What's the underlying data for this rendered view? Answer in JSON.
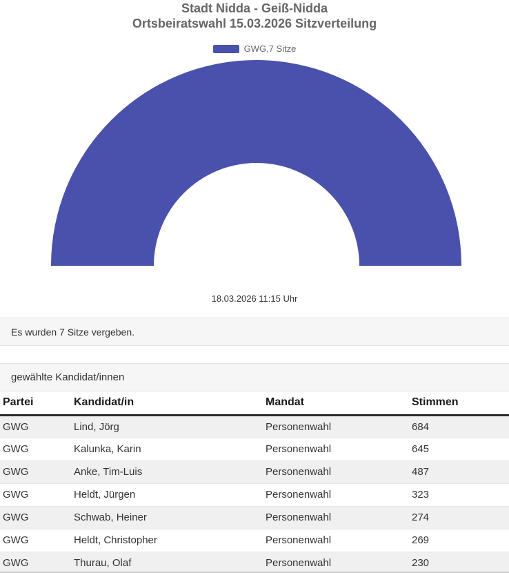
{
  "chart": {
    "title_line1": "Stadt Nidda - Geiß-Nidda",
    "title_line2": "Ortsbeiratswahl 15.03.2026 Sitzverteilung",
    "legend_label": "GWG,7 Sitze",
    "timestamp": "18.03.2026 11:15 Uhr",
    "slice_color": "#4a51ac"
  },
  "chart_data": {
    "type": "pie",
    "variant": "half-donut",
    "title": "Stadt Nidda - Geiß-Nidda Ortsbeiratswahl 15.03.2026 Sitzverteilung",
    "categories": [
      "GWG"
    ],
    "values": [
      7
    ],
    "unit": "Sitze",
    "total_seats": 7,
    "colors": [
      "#4a51ac"
    ],
    "legend_position": "top",
    "inner_radius_ratio": 0.5,
    "annotations": [
      "18.03.2026 11:15 Uhr"
    ]
  },
  "summary": {
    "text": "Es wurden 7 Sitze vergeben."
  },
  "section": {
    "title": "gewählte Kandidat/innen"
  },
  "table": {
    "headers": [
      "Partei",
      "Kandidat/in",
      "Mandat",
      "Stimmen"
    ],
    "rows": [
      [
        "GWG",
        "Lind, Jörg",
        "Personenwahl",
        "684"
      ],
      [
        "GWG",
        "Kalunka, Karin",
        "Personenwahl",
        "645"
      ],
      [
        "GWG",
        "Anke, Tim-Luis",
        "Personenwahl",
        "487"
      ],
      [
        "GWG",
        "Heldt, Jürgen",
        "Personenwahl",
        "323"
      ],
      [
        "GWG",
        "Schwab, Heiner",
        "Personenwahl",
        "274"
      ],
      [
        "GWG",
        "Heldt, Christopher",
        "Personenwahl",
        "269"
      ],
      [
        "GWG",
        "Thurau, Olaf",
        "Personenwahl",
        "230"
      ]
    ]
  }
}
